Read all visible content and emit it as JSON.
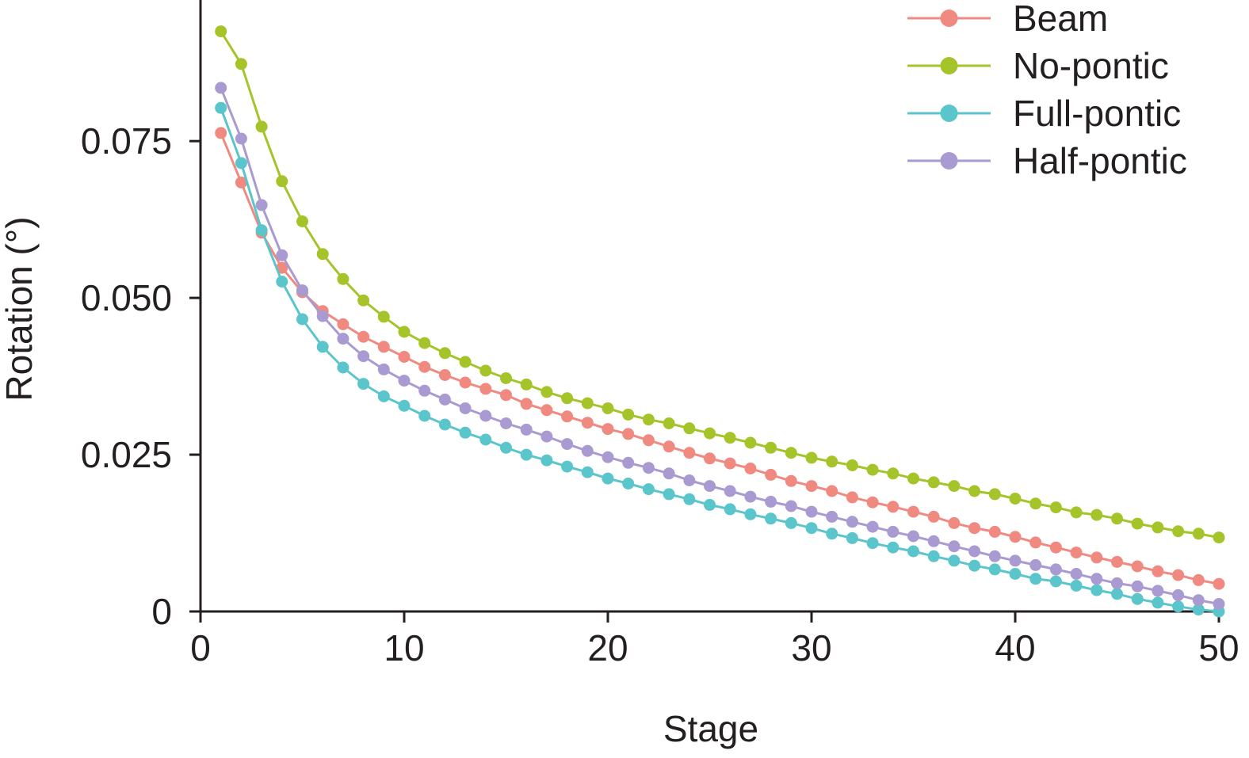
{
  "chart_data": {
    "type": "line",
    "title": "",
    "xlabel": "Stage",
    "ylabel": "Rotation (°)",
    "xlim": [
      0,
      50
    ],
    "ylim": [
      0,
      0.0975
    ],
    "xticks": [
      0,
      10,
      20,
      30,
      40,
      50
    ],
    "xtick_labels": [
      "0",
      "10",
      "20",
      "30",
      "40",
      "50"
    ],
    "yticks": [
      0,
      0.025,
      0.05,
      0.075
    ],
    "ytick_labels": [
      "0",
      "0.025",
      "0.050",
      "0.075"
    ],
    "grid": false,
    "legend_position": "top-right",
    "x": [
      1,
      2,
      3,
      4,
      5,
      6,
      7,
      8,
      9,
      10,
      11,
      12,
      13,
      14,
      15,
      16,
      17,
      18,
      19,
      20,
      21,
      22,
      23,
      24,
      25,
      26,
      27,
      28,
      29,
      30,
      31,
      32,
      33,
      34,
      35,
      36,
      37,
      38,
      39,
      40,
      41,
      42,
      43,
      44,
      45,
      46,
      47,
      48,
      49,
      50
    ],
    "series": [
      {
        "name": "Beam",
        "color": "#f08a80",
        "values": [
          0.0763,
          0.0684,
          0.0604,
          0.0548,
          0.0509,
          0.0479,
          0.0458,
          0.0438,
          0.0422,
          0.0406,
          0.039,
          0.0377,
          0.0365,
          0.0355,
          0.0345,
          0.0331,
          0.0321,
          0.0311,
          0.0301,
          0.0291,
          0.0283,
          0.0273,
          0.0263,
          0.0253,
          0.0244,
          0.0236,
          0.0228,
          0.0218,
          0.0208,
          0.02,
          0.0192,
          0.0182,
          0.0174,
          0.0167,
          0.0159,
          0.0151,
          0.0141,
          0.0133,
          0.0127,
          0.0119,
          0.011,
          0.0102,
          0.0094,
          0.0086,
          0.0079,
          0.0072,
          0.0064,
          0.0058,
          0.005,
          0.0044
        ]
      },
      {
        "name": "No-pontic",
        "color": "#a4c42a",
        "values": [
          0.0925,
          0.0873,
          0.0773,
          0.0686,
          0.0622,
          0.057,
          0.053,
          0.0496,
          0.047,
          0.0446,
          0.0428,
          0.0412,
          0.0398,
          0.0384,
          0.0372,
          0.0362,
          0.035,
          0.034,
          0.0332,
          0.0324,
          0.0314,
          0.0306,
          0.03,
          0.0292,
          0.0284,
          0.0277,
          0.0269,
          0.0261,
          0.0253,
          0.0245,
          0.0239,
          0.0233,
          0.0226,
          0.022,
          0.0212,
          0.0206,
          0.02,
          0.0192,
          0.0187,
          0.018,
          0.0172,
          0.0166,
          0.0158,
          0.0154,
          0.0148,
          0.014,
          0.0134,
          0.0128,
          0.0124,
          0.0118
        ]
      },
      {
        "name": "Full-pontic",
        "color": "#5bc5cc",
        "values": [
          0.0803,
          0.0715,
          0.0608,
          0.0526,
          0.0466,
          0.0422,
          0.0389,
          0.0363,
          0.0343,
          0.0328,
          0.0312,
          0.0298,
          0.0285,
          0.0274,
          0.0261,
          0.025,
          0.0241,
          0.0231,
          0.0222,
          0.0212,
          0.0204,
          0.0195,
          0.0187,
          0.0179,
          0.017,
          0.0163,
          0.0155,
          0.0148,
          0.0141,
          0.0133,
          0.0124,
          0.0117,
          0.0109,
          0.0102,
          0.0096,
          0.0088,
          0.0081,
          0.0073,
          0.0067,
          0.006,
          0.0052,
          0.0048,
          0.0041,
          0.0034,
          0.0028,
          0.002,
          0.0014,
          0.0008,
          0.0003,
          0.0
        ]
      },
      {
        "name": "Half-pontic",
        "color": "#a99bd2",
        "values": [
          0.0835,
          0.0754,
          0.0648,
          0.0568,
          0.0512,
          0.0471,
          0.0435,
          0.0407,
          0.0386,
          0.0368,
          0.0352,
          0.0338,
          0.0324,
          0.0312,
          0.03,
          0.029,
          0.0279,
          0.0267,
          0.0256,
          0.0246,
          0.0237,
          0.0229,
          0.022,
          0.0209,
          0.02,
          0.0192,
          0.0183,
          0.0175,
          0.0168,
          0.0159,
          0.0151,
          0.0143,
          0.0135,
          0.0127,
          0.012,
          0.0112,
          0.0104,
          0.0096,
          0.0088,
          0.0081,
          0.0074,
          0.0067,
          0.006,
          0.0052,
          0.0045,
          0.004,
          0.0033,
          0.0026,
          0.0018,
          0.0012
        ]
      }
    ]
  }
}
